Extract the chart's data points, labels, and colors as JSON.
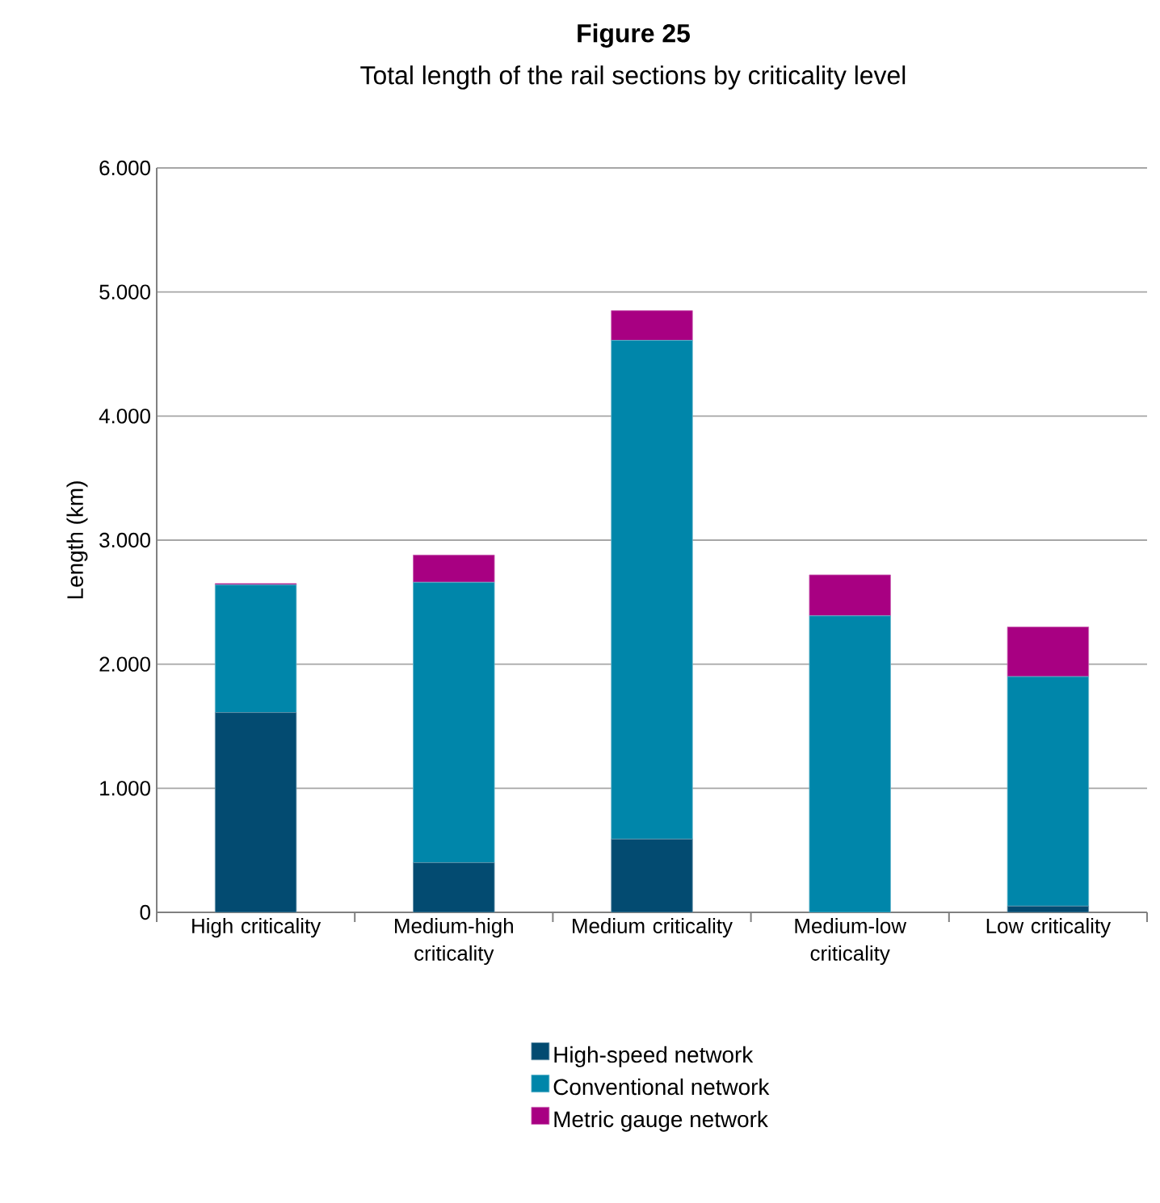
{
  "chart_data": {
    "type": "bar",
    "stacked": true,
    "title": "Figure 25",
    "subtitle": "Total length of the rail sections by criticality level",
    "ylabel": "Length  (km)",
    "categories": [
      "High criticality",
      "Medium-high criticality",
      "Medium criticality",
      "Medium-low criticality",
      "Low criticality"
    ],
    "series": [
      {
        "name": "High-speed network",
        "color": "#034b71",
        "values": [
          1610,
          400,
          590,
          0,
          50
        ]
      },
      {
        "name": "Conventional network",
        "color": "#0086aa",
        "values": [
          1030,
          2260,
          4020,
          2390,
          1850
        ]
      },
      {
        "name": "Metric gauge network",
        "color": "#a80082",
        "values": [
          10,
          220,
          240,
          330,
          400
        ]
      }
    ],
    "ylim": [
      0,
      6000
    ],
    "yticks": [
      {
        "value": 0,
        "label": "0"
      },
      {
        "value": 1000,
        "label": "1.000"
      },
      {
        "value": 2000,
        "label": "2.000"
      },
      {
        "value": 3000,
        "label": "3.000"
      },
      {
        "value": 4000,
        "label": "4.000"
      },
      {
        "value": 5000,
        "label": "5.000"
      },
      {
        "value": 6000,
        "label": "6.000"
      }
    ],
    "grid": "y",
    "legend": "bottom"
  }
}
